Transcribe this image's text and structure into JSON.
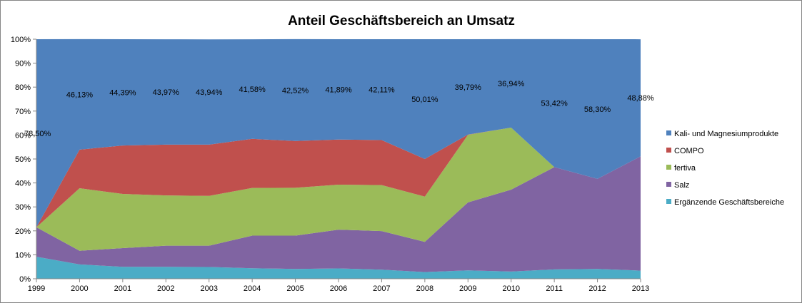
{
  "chart_data": {
    "type": "area",
    "stacking": "percent",
    "title": "Anteil Geschäftsbereich an Umsatz",
    "xlabel": "",
    "ylabel": "",
    "ylim": [
      0,
      100
    ],
    "y_ticks": [
      "0%",
      "10%",
      "20%",
      "30%",
      "40%",
      "50%",
      "60%",
      "70%",
      "80%",
      "90%",
      "100%"
    ],
    "categories": [
      "1999",
      "2000",
      "2001",
      "2002",
      "2003",
      "2004",
      "2005",
      "2006",
      "2007",
      "2008",
      "2009",
      "2010",
      "2011",
      "2012",
      "2013"
    ],
    "series": [
      {
        "name": "Ergänzende Geschäftsbereiche",
        "color": "#4BACC6",
        "values": [
          9.2,
          6.0,
          5.0,
          5.0,
          4.9,
          4.4,
          4.1,
          4.3,
          3.8,
          2.8,
          3.5,
          3.0,
          3.9,
          4.1,
          3.4
        ]
      },
      {
        "name": "Salz",
        "color": "#8064A2",
        "values": [
          12.3,
          5.7,
          7.8,
          8.8,
          8.9,
          13.6,
          13.9,
          16.2,
          16.1,
          12.6,
          28.4,
          34.2,
          42.7,
          37.6,
          47.7
        ]
      },
      {
        "name": "fertiva",
        "color": "#9BBB59",
        "values": [
          0,
          26.1,
          22.6,
          21.0,
          20.8,
          19.9,
          20.0,
          18.8,
          19.2,
          18.9,
          28.2,
          25.9,
          0,
          0,
          0
        ]
      },
      {
        "name": "COMPO",
        "color": "#C0504D",
        "values": [
          0,
          16.1,
          20.2,
          21.2,
          21.4,
          20.5,
          19.5,
          18.8,
          18.8,
          15.7,
          0.1,
          0,
          0,
          0,
          0
        ]
      },
      {
        "name": "Kali- und Magnesiumprodukte",
        "color": "#4F81BD",
        "values": [
          78.5,
          46.13,
          44.39,
          43.97,
          43.94,
          41.58,
          42.52,
          41.89,
          42.11,
          50.01,
          39.79,
          36.94,
          53.42,
          58.3,
          48.88
        ]
      }
    ],
    "data_labels": [
      "78,50%",
      "46,13%",
      "44,39%",
      "43,97%",
      "43,94%",
      "41,58%",
      "42,52%",
      "41,89%",
      "42,11%",
      "50,01%",
      "39,79%",
      "36,94%",
      "53,42%",
      "58,30%",
      "48,88%"
    ],
    "legend": {
      "position": "right",
      "entries": [
        {
          "label": "Kali- und Magnesiumprodukte",
          "color": "#4F81BD"
        },
        {
          "label": "COMPO",
          "color": "#C0504D"
        },
        {
          "label": "fertiva",
          "color": "#9BBB59"
        },
        {
          "label": "Salz",
          "color": "#8064A2"
        },
        {
          "label": "Ergänzende Geschäftsbereiche",
          "color": "#4BACC6"
        }
      ]
    },
    "grid": false
  }
}
